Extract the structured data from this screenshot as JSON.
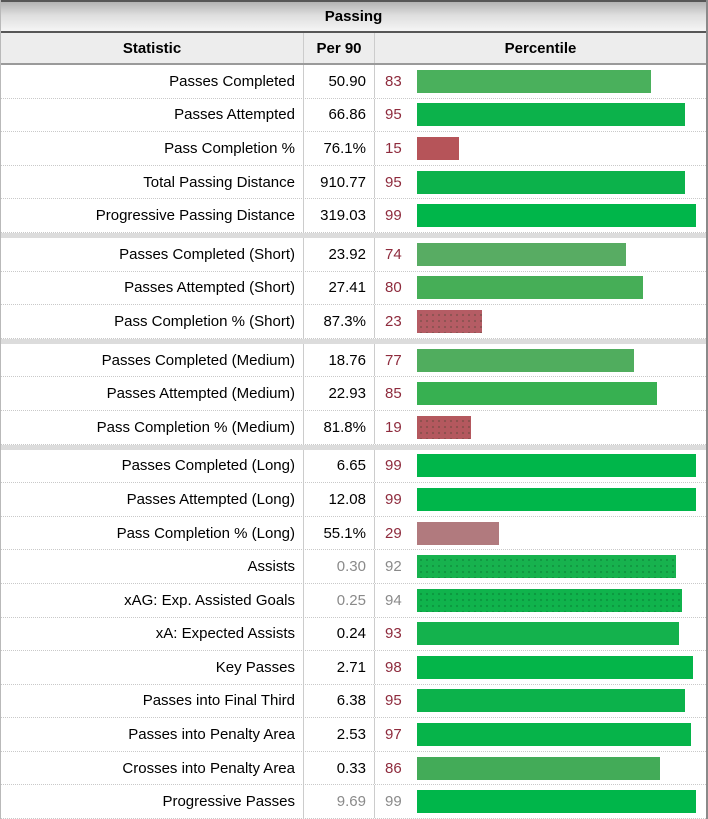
{
  "title": "Passing",
  "columns": {
    "stat": "Statistic",
    "per90": "Per 90",
    "percentile": "Percentile"
  },
  "colors": {
    "frame_border": "#565656",
    "pct_num": "#8e2b3d",
    "muted_text": "#8a8a8a",
    "sep_band": "#dcdcdc",
    "green_high": "#00b64a",
    "red_low": "#b65459"
  },
  "chart_data": {
    "type": "table",
    "title": "Passing",
    "columns": [
      "Statistic",
      "Per 90",
      "Percentile"
    ],
    "bar_axis": {
      "min": 0,
      "max": 100
    },
    "group_breaks_after": [
      4,
      7,
      10
    ],
    "rows": [
      {
        "stat": "Passes Completed",
        "per90": "50.90",
        "percentile": 83,
        "bar_color": "#4ab05c",
        "muted": false,
        "patterned": false
      },
      {
        "stat": "Passes Attempted",
        "per90": "66.86",
        "percentile": 95,
        "bar_color": "#0cb24b",
        "muted": false,
        "patterned": false
      },
      {
        "stat": "Pass Completion %",
        "per90": "76.1%",
        "percentile": 15,
        "bar_color": "#b65459",
        "muted": false,
        "patterned": false
      },
      {
        "stat": "Total Passing Distance",
        "per90": "910.77",
        "percentile": 95,
        "bar_color": "#0cb24b",
        "muted": false,
        "patterned": false
      },
      {
        "stat": "Progressive Passing Distance",
        "per90": "319.03",
        "percentile": 99,
        "bar_color": "#00b64a",
        "muted": false,
        "patterned": false
      },
      {
        "stat": "Passes Completed (Short)",
        "per90": "23.92",
        "percentile": 74,
        "bar_color": "#58ac63",
        "muted": false,
        "patterned": false
      },
      {
        "stat": "Passes Attempted (Short)",
        "per90": "27.41",
        "percentile": 80,
        "bar_color": "#46ae57",
        "muted": false,
        "patterned": false
      },
      {
        "stat": "Pass Completion % (Short)",
        "per90": "87.3%",
        "percentile": 23,
        "bar_color": "#b55c64",
        "muted": false,
        "patterned": true
      },
      {
        "stat": "Passes Completed (Medium)",
        "per90": "18.76",
        "percentile": 77,
        "bar_color": "#50ad5e",
        "muted": false,
        "patterned": false
      },
      {
        "stat": "Passes Attempted (Medium)",
        "per90": "22.93",
        "percentile": 85,
        "bar_color": "#37b051",
        "muted": false,
        "patterned": false
      },
      {
        "stat": "Pass Completion % (Medium)",
        "per90": "81.8%",
        "percentile": 19,
        "bar_color": "#b4585e",
        "muted": false,
        "patterned": true
      },
      {
        "stat": "Passes Completed (Long)",
        "per90": "6.65",
        "percentile": 99,
        "bar_color": "#00b64a",
        "muted": false,
        "patterned": false
      },
      {
        "stat": "Passes Attempted (Long)",
        "per90": "12.08",
        "percentile": 99,
        "bar_color": "#00b64a",
        "muted": false,
        "patterned": false
      },
      {
        "stat": "Pass Completion % (Long)",
        "per90": "55.1%",
        "percentile": 29,
        "bar_color": "#b17a7e",
        "muted": false,
        "patterned": false
      },
      {
        "stat": "Assists",
        "per90": "0.30",
        "percentile": 92,
        "bar_color": "#17b24e",
        "muted": true,
        "patterned": true
      },
      {
        "stat": "xAG: Exp. Assisted Goals",
        "per90": "0.25",
        "percentile": 94,
        "bar_color": "#10b34c",
        "muted": true,
        "patterned": true
      },
      {
        "stat": "xA: Expected Assists",
        "per90": "0.24",
        "percentile": 93,
        "bar_color": "#14b24d",
        "muted": false,
        "patterned": false
      },
      {
        "stat": "Key Passes",
        "per90": "2.71",
        "percentile": 98,
        "bar_color": "#04b549",
        "muted": false,
        "patterned": false
      },
      {
        "stat": "Passes into Final Third",
        "per90": "6.38",
        "percentile": 95,
        "bar_color": "#0cb24b",
        "muted": false,
        "patterned": false
      },
      {
        "stat": "Passes into Penalty Area",
        "per90": "2.53",
        "percentile": 97,
        "bar_color": "#06b44a",
        "muted": false,
        "patterned": false
      },
      {
        "stat": "Crosses into Penalty Area",
        "per90": "0.33",
        "percentile": 86,
        "bar_color": "#43ab58",
        "muted": false,
        "patterned": false
      },
      {
        "stat": "Progressive Passes",
        "per90": "9.69",
        "percentile": 99,
        "bar_color": "#00b64a",
        "muted": true,
        "patterned": false
      }
    ]
  }
}
